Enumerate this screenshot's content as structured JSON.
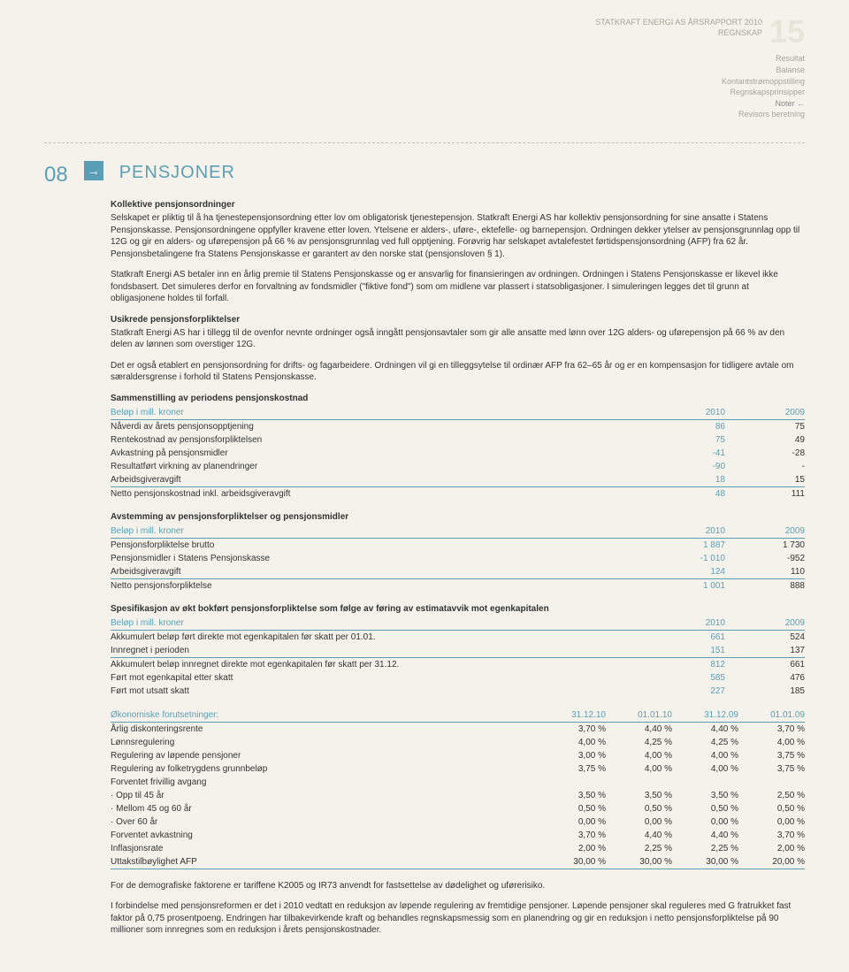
{
  "header": {
    "company": "STATKRAFT ENERGI AS ÅRSRAPPORT 2010",
    "section": "REGNSKAP",
    "page_number": "15"
  },
  "subheader": {
    "items": [
      "Resultat",
      "Balanse",
      "Kontantstrømoppstilling",
      "Regnskapsprinsipper"
    ],
    "noter": "Noter",
    "arrow": "←",
    "last": "Revisors beretning"
  },
  "note": {
    "number": "08",
    "arrow": "→",
    "title": "PENSJONER"
  },
  "section1": {
    "heading": "Kollektive pensjonsordninger",
    "p1": "Selskapet er pliktig til å ha tjenestepensjonsordning etter lov om obligatorisk tjenestepensjon. Statkraft Energi AS har kollektiv pensjonsordning for sine ansatte i Statens Pensjonskasse. Pensjonsordningene oppfyller kravene etter loven. Ytelsene er alders-, uføre-, ektefelle- og barnepensjon. Ordningen dekker ytelser av pensjonsgrunnlag opp til 12G og gir en alders- og uførepensjon på 66 % av pensjonsgrunnlag ved full opptjening. Forøvrig har selskapet avtalefestet førtidspensjonsordning (AFP) fra 62 år. Pensjonsbetalingene fra Statens Pensjonskasse er garantert av den norske stat (pensjonsloven § 1).",
    "p2": "Statkraft Energi AS betaler inn en årlig premie til Statens Pensjonskasse og er ansvarlig for finansieringen av ordningen. Ordningen i Statens Pensjonskasse er likevel ikke fondsbasert. Det simuleres derfor en forvaltning av fondsmidler (\"fiktive fond\") som om midlene var plassert i statsobligasjoner. I simuleringen legges det til grunn at obligasjonene holdes til forfall."
  },
  "section2": {
    "heading": "Usikrede pensjonsforpliktelser",
    "p1": "Statkraft Energi AS har i tillegg til de ovenfor nevnte ordninger også inngått pensjonsavtaler som gir alle ansatte med lønn over 12G alders- og uførepensjon på 66 % av den delen av lønnen som overstiger 12G.",
    "p2": "Det er også etablert en pensjonsordning for drifts- og fagarbeidere. Ordningen vil gi en tilleggsytelse til ordinær AFP fra 62–65 år og er en kompensasjon for tidligere avtale om særaldersgrense i forhold til Statens Pensjonskasse."
  },
  "table1": {
    "title": "Sammenstilling av periodens pensjonskostnad",
    "unit_label": "Beløp i mill. kroner",
    "col1": "2010",
    "col2": "2009",
    "rows": [
      {
        "label": "Nåverdi av årets pensjonsopptjening",
        "v1": "86",
        "v2": "75"
      },
      {
        "label": "Rentekostnad av pensjonsforpliktelsen",
        "v1": "75",
        "v2": "49"
      },
      {
        "label": "Avkastning på pensjonsmidler",
        "v1": "-41",
        "v2": "-28"
      },
      {
        "label": "Resultatført virkning av planendringer",
        "v1": "-90",
        "v2": "-"
      },
      {
        "label": "Arbeidsgiveravgift",
        "v1": "18",
        "v2": "15"
      }
    ],
    "total": {
      "label": "Netto pensjonskostnad inkl. arbeidsgiveravgift",
      "v1": "48",
      "v2": "111"
    }
  },
  "table2": {
    "title": "Avstemming av pensjonsforpliktelser og pensjonsmidler",
    "unit_label": "Beløp i mill. kroner",
    "col1": "2010",
    "col2": "2009",
    "rows": [
      {
        "label": "Pensjonsforpliktelse brutto",
        "v1": "1 887",
        "v2": "1 730"
      },
      {
        "label": "Pensjonsmidler i Statens Pensjonskasse",
        "v1": "-1 010",
        "v2": "-952"
      },
      {
        "label": "Arbeidsgiveravgift",
        "v1": "124",
        "v2": "110"
      }
    ],
    "total": {
      "label": "Netto pensjonsforpliktelse",
      "v1": "1 001",
      "v2": "888"
    }
  },
  "table3": {
    "title": "Spesifikasjon av økt bokført pensjonsforpliktelse som følge av føring av estimatavvik mot egenkapitalen",
    "unit_label": "Beløp i mill. kroner",
    "col1": "2010",
    "col2": "2009",
    "rows": [
      {
        "label": "Akkumulert beløp ført direkte mot egenkapitalen før skatt per 01.01.",
        "v1": "661",
        "v2": "524"
      },
      {
        "label": "Innregnet i perioden",
        "v1": "151",
        "v2": "137"
      }
    ],
    "mid": {
      "label": "Akkumulert beløp innregnet direkte mot egenkapitalen før skatt per 31.12.",
      "v1": "812",
      "v2": "661"
    },
    "after": [
      {
        "label": "Ført mot egenkapital etter skatt",
        "v1": "585",
        "v2": "476"
      },
      {
        "label": "Ført mot utsatt skatt",
        "v1": "227",
        "v2": "185"
      }
    ]
  },
  "table4": {
    "title": "Økonomiske forutsetninger:",
    "cols": [
      "31.12.10",
      "01.01.10",
      "31.12.09",
      "01.01.09"
    ],
    "rows": [
      {
        "label": "Årlig diskonteringsrente",
        "v": [
          "3,70 %",
          "4,40 %",
          "4,40 %",
          "3,70 %"
        ]
      },
      {
        "label": "Lønnsregulering",
        "v": [
          "4,00 %",
          "4,25 %",
          "4,25 %",
          "4,00 %"
        ]
      },
      {
        "label": "Regulering av løpende pensjoner",
        "v": [
          "3,00 %",
          "4,00 %",
          "4,00 %",
          "3,75 %"
        ]
      },
      {
        "label": "Regulering av folketrygdens grunnbeløp",
        "v": [
          "3,75 %",
          "4,00 %",
          "4,00 %",
          "3,75 %"
        ]
      },
      {
        "label": "Forventet frivillig avgang",
        "v": [
          "",
          "",
          "",
          ""
        ]
      },
      {
        "label": "· Opp til 45 år",
        "v": [
          "3,50 %",
          "3,50 %",
          "3,50 %",
          "2,50 %"
        ]
      },
      {
        "label": "· Mellom 45 og 60 år",
        "v": [
          "0,50 %",
          "0,50 %",
          "0,50 %",
          "0,50 %"
        ]
      },
      {
        "label": "· Over 60 år",
        "v": [
          "0,00 %",
          "0,00 %",
          "0,00 %",
          "0,00 %"
        ]
      },
      {
        "label": "Forventet avkastning",
        "v": [
          "3,70 %",
          "4,40 %",
          "4,40 %",
          "3,70 %"
        ]
      },
      {
        "label": "Inflasjonsrate",
        "v": [
          "2,00 %",
          "2,25 %",
          "2,25 %",
          "2,00 %"
        ]
      },
      {
        "label": "Uttakstilbøylighet AFP",
        "v": [
          "30,00 %",
          "30,00 %",
          "30,00 %",
          "20,00 %"
        ]
      }
    ]
  },
  "footer": {
    "p1": "For de demografiske faktorene er tariffene K2005 og IR73 anvendt for fastsettelse av dødelighet og uførerisiko.",
    "p2": "I forbindelse med pensjonsreformen er det i 2010 vedtatt en reduksjon av løpende regulering av fremtidige pensjoner. Løpende pensjoner skal reguleres med G fratrukket fast faktor på 0,75 prosentpoeng. Endringen har tilbakevirkende kraft og behandles regnskapsmessig som en planendring og gir en reduksjon i netto pensjonsforpliktelse på 90 millioner som innregnes som en reduksjon i årets pensjonskostnader."
  }
}
